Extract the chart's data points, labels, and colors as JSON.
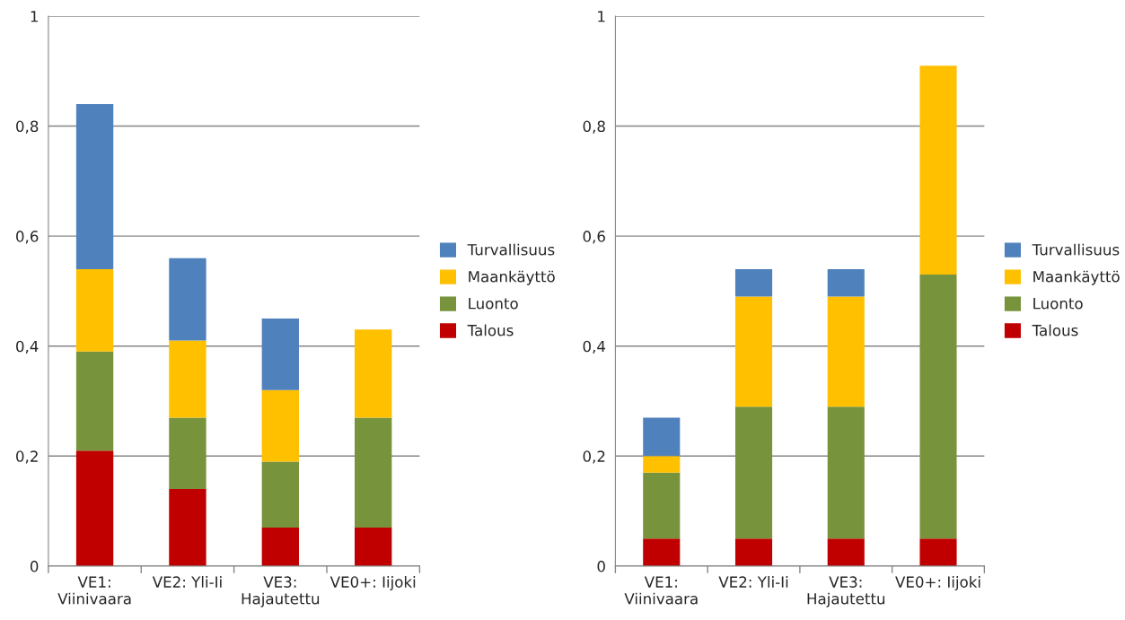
{
  "chart_data": [
    {
      "type": "bar",
      "stacked": true,
      "categories": [
        "VE1: Viinivaara",
        "VE2: Yli-Ii",
        "VE3: Hajautettu",
        "VE0+: Iijoki"
      ],
      "series": [
        {
          "name": "Talous",
          "color": "#c00000",
          "values": [
            0.21,
            0.14,
            0.07,
            0.07
          ]
        },
        {
          "name": "Luonto",
          "color": "#77933c",
          "values": [
            0.18,
            0.13,
            0.12,
            0.2
          ]
        },
        {
          "name": "Maankäyttö",
          "color": "#ffc000",
          "values": [
            0.15,
            0.14,
            0.13,
            0.16
          ]
        },
        {
          "name": "Turvallisuus",
          "color": "#4f81bd",
          "values": [
            0.3,
            0.15,
            0.13,
            0
          ]
        }
      ],
      "ylim": [
        0,
        1
      ],
      "yticks": [
        0,
        {
          "value": 0.2,
          "label": "0,2"
        },
        {
          "value": 0.4,
          "label": "0,4"
        },
        {
          "value": 0.6,
          "label": "0,6"
        },
        {
          "value": 0.8,
          "label": "0,8"
        },
        1
      ],
      "grid": "y",
      "legend": "right"
    },
    {
      "type": "bar",
      "stacked": true,
      "categories": [
        "VE1: Viinivaara",
        "VE2: Yli-Ii",
        "VE3: Hajautettu",
        "VE0+: Iijoki"
      ],
      "series": [
        {
          "name": "Talous",
          "color": "#c00000",
          "values": [
            0.05,
            0.05,
            0.05,
            0.05
          ]
        },
        {
          "name": "Luonto",
          "color": "#77933c",
          "values": [
            0.12,
            0.24,
            0.24,
            0.48
          ]
        },
        {
          "name": "Maankäyttö",
          "color": "#ffc000",
          "values": [
            0.03,
            0.2,
            0.2,
            0.38
          ]
        },
        {
          "name": "Turvallisuus",
          "color": "#4f81bd",
          "values": [
            0.07,
            0.05,
            0.05,
            0
          ]
        }
      ],
      "ylim": [
        0,
        1
      ],
      "yticks": [
        0,
        {
          "value": 0.2,
          "label": "0,2"
        },
        {
          "value": 0.4,
          "label": "0,4"
        },
        {
          "value": 0.6,
          "label": "0,6"
        },
        {
          "value": 0.8,
          "label": "0,8"
        },
        1
      ],
      "grid": "y",
      "legend": "right"
    }
  ]
}
